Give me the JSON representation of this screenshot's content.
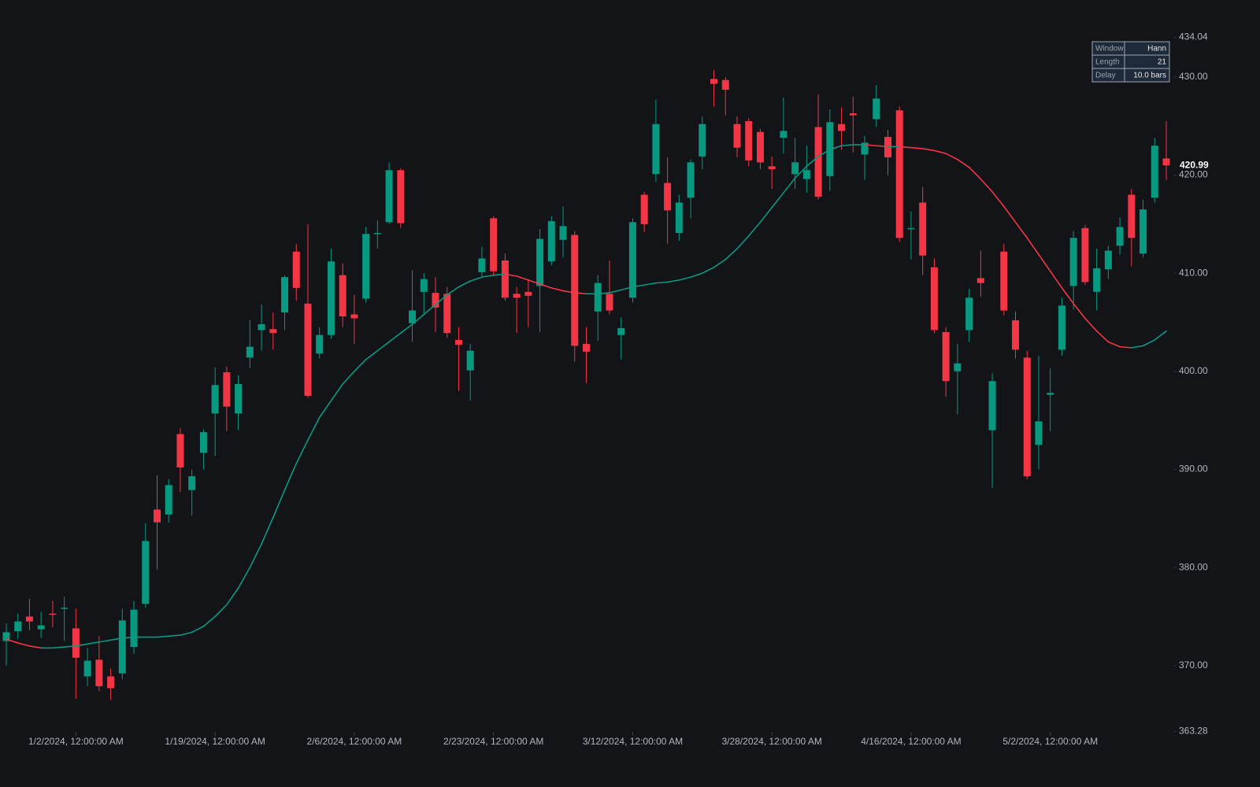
{
  "chart_data": {
    "type": "candlestick",
    "categories": [
      null,
      null,
      null,
      null,
      null,
      null,
      "1/2/2024, 12:00:00 AM",
      null,
      null,
      null,
      null,
      null,
      null,
      null,
      null,
      null,
      null,
      null,
      "1/19/2024, 12:00:00 AM",
      null,
      null,
      null,
      null,
      null,
      null,
      null,
      null,
      null,
      null,
      null,
      "2/6/2024, 12:00:00 AM",
      null,
      null,
      null,
      null,
      null,
      null,
      null,
      null,
      null,
      null,
      null,
      "2/23/2024, 12:00:00 AM",
      null,
      null,
      null,
      null,
      null,
      null,
      null,
      null,
      null,
      null,
      null,
      "3/12/2024, 12:00:00 AM",
      null,
      null,
      null,
      null,
      null,
      null,
      null,
      null,
      null,
      null,
      null,
      "3/28/2024, 12:00:00 AM",
      null,
      null,
      null,
      null,
      null,
      null,
      null,
      null,
      null,
      null,
      null,
      "4/16/2024, 12:00:00 AM",
      null,
      null,
      null,
      null,
      null,
      null,
      null,
      null,
      null,
      null,
      null,
      "5/2/2024, 12:00:00 AM",
      null,
      null,
      null,
      null,
      null,
      null,
      null,
      null,
      null,
      null
    ],
    "series": [
      {
        "up_color": "#089981",
        "down_color": "#f23645",
        "open": [
          372.5,
          373.5,
          375.0,
          373.7,
          375.3,
          375.8,
          373.8,
          368.9,
          370.6,
          368.9,
          369.2,
          371.9,
          376.3,
          385.9,
          385.4,
          393.6,
          387.9,
          391.7,
          395.7,
          399.9,
          395.7,
          401.4,
          404.2,
          404.3,
          406.0,
          412.2,
          406.9,
          401.8,
          403.7,
          409.8,
          405.8,
          407.4,
          414.0,
          415.2,
          420.5,
          404.9,
          408.1,
          408.0,
          407.9,
          403.2,
          400.1,
          410.1,
          415.6,
          411.3,
          407.9,
          408.1,
          408.7,
          411.2,
          413.4,
          413.9,
          402.8,
          406.1,
          407.9,
          403.7,
          407.5,
          418.0,
          420.1,
          419.2,
          414.1,
          417.7,
          421.9,
          429.8,
          429.7,
          425.2,
          425.5,
          424.4,
          420.9,
          423.8,
          420.1,
          419.6,
          424.9,
          419.9,
          425.2,
          426.3,
          422.1,
          425.7,
          423.9,
          426.6,
          414.5,
          417.2,
          410.6,
          404.0,
          400.0,
          404.2,
          409.5,
          394.0,
          412.2,
          405.2,
          401.4,
          392.5,
          397.6,
          402.2,
          408.7,
          414.6,
          408.1,
          410.4,
          412.8,
          418.0,
          412.0,
          417.7,
          421.7
        ],
        "high": [
          374.3,
          375.3,
          376.8,
          375.5,
          376.6,
          377.0,
          375.8,
          371.8,
          373.0,
          369.7,
          375.8,
          376.6,
          384.5,
          389.4,
          389.0,
          394.2,
          390.0,
          394.1,
          400.4,
          400.5,
          399.6,
          405.2,
          406.8,
          406.0,
          409.8,
          413.0,
          415.0,
          404.5,
          412.5,
          411.0,
          407.8,
          414.7,
          415.4,
          421.3,
          420.7,
          410.3,
          410.0,
          409.6,
          408.6,
          404.5,
          402.8,
          412.7,
          415.8,
          412.0,
          408.6,
          409.4,
          414.5,
          415.8,
          416.8,
          414.3,
          404.5,
          409.8,
          411.3,
          405.5,
          415.6,
          418.3,
          427.7,
          421.8,
          418.0,
          421.6,
          426.0,
          430.7,
          430.0,
          426.0,
          425.8,
          424.7,
          421.9,
          427.9,
          423.8,
          423.0,
          428.2,
          426.7,
          426.9,
          428.0,
          424.0,
          429.2,
          424.6,
          427.0,
          416.3,
          418.8,
          411.5,
          404.5,
          402.8,
          408.4,
          412.3,
          399.8,
          413.0,
          406.1,
          402.1,
          401.6,
          400.3,
          407.5,
          414.3,
          414.9,
          412.5,
          412.8,
          415.7,
          418.6,
          417.5,
          423.8,
          425.5
        ],
        "low": [
          370.0,
          372.7,
          373.6,
          372.8,
          373.9,
          372.5,
          366.6,
          367.9,
          367.4,
          366.5,
          368.6,
          371.2,
          375.9,
          379.8,
          384.6,
          387.7,
          385.3,
          390.0,
          391.4,
          393.9,
          394.0,
          400.3,
          402.1,
          402.2,
          404.2,
          407.2,
          397.3,
          401.3,
          403.3,
          404.5,
          402.8,
          407.0,
          412.5,
          415.0,
          414.6,
          403.0,
          405.8,
          404.0,
          403.4,
          398.0,
          397.0,
          409.6,
          409.8,
          407.2,
          403.9,
          404.5,
          404.0,
          410.8,
          411.6,
          401.0,
          398.8,
          403.1,
          405.8,
          401.2,
          407.0,
          414.2,
          419.3,
          413.0,
          413.3,
          415.6,
          420.6,
          427.0,
          426.1,
          421.8,
          420.9,
          420.6,
          418.6,
          422.2,
          418.6,
          418.2,
          417.5,
          418.4,
          422.6,
          422.3,
          419.5,
          424.9,
          420.0,
          413.2,
          411.4,
          409.8,
          403.9,
          397.4,
          395.6,
          403.0,
          407.6,
          388.1,
          405.7,
          401.3,
          389.0,
          390.0,
          393.9,
          401.6,
          406.3,
          408.8,
          406.2,
          409.4,
          411.9,
          410.7,
          411.6,
          417.2,
          419.5
        ],
        "close": [
          373.4,
          374.5,
          374.5,
          374.1,
          375.2,
          375.9,
          370.8,
          370.5,
          367.9,
          367.7,
          374.6,
          375.7,
          382.7,
          384.6,
          388.4,
          390.2,
          389.3,
          393.8,
          398.6,
          396.4,
          398.7,
          402.5,
          404.8,
          403.9,
          409.6,
          408.5,
          397.5,
          403.7,
          411.2,
          405.6,
          405.4,
          414.0,
          414.1,
          420.5,
          415.1,
          406.2,
          409.4,
          406.5,
          403.9,
          402.7,
          402.1,
          411.5,
          410.2,
          407.5,
          407.5,
          407.7,
          413.5,
          415.3,
          414.8,
          402.6,
          402.0,
          409.0,
          406.2,
          404.4,
          415.2,
          415.0,
          425.2,
          416.4,
          417.2,
          421.3,
          425.2,
          429.3,
          428.7,
          422.8,
          421.5,
          421.3,
          420.6,
          424.5,
          421.3,
          420.5,
          417.8,
          425.4,
          424.5,
          426.1,
          423.3,
          427.8,
          421.8,
          413.6,
          414.6,
          411.8,
          404.2,
          399.0,
          400.8,
          407.5,
          409.0,
          399.0,
          406.2,
          402.2,
          389.3,
          394.9,
          397.8,
          406.7,
          413.6,
          409.1,
          410.5,
          412.3,
          414.7,
          413.6,
          416.5,
          423.0,
          420.99
        ]
      },
      {
        "type": "line",
        "up_color": "#089981",
        "down_color": "#f23645",
        "values": [
          372.7,
          372.3,
          372.0,
          371.8,
          371.8,
          371.9,
          372.0,
          372.2,
          372.4,
          372.6,
          372.8,
          372.9,
          372.9,
          372.9,
          373.0,
          373.1,
          373.4,
          374.0,
          375.0,
          376.2,
          377.9,
          380.0,
          382.4,
          385.1,
          387.9,
          390.6,
          393.0,
          395.3,
          397.0,
          398.7,
          400.0,
          401.2,
          402.1,
          403.0,
          403.9,
          404.8,
          405.8,
          406.8,
          407.8,
          408.6,
          409.2,
          409.6,
          409.8,
          409.9,
          409.7,
          409.3,
          408.9,
          408.5,
          408.2,
          408.0,
          407.9,
          407.9,
          408.0,
          408.3,
          408.6,
          408.8,
          409.0,
          409.1,
          409.3,
          409.6,
          410.0,
          410.6,
          411.4,
          412.5,
          413.8,
          415.2,
          416.7,
          418.2,
          419.7,
          420.9,
          421.9,
          422.6,
          423.0,
          423.1,
          423.1,
          423.0,
          422.9,
          422.9,
          422.8,
          422.7,
          422.5,
          422.2,
          421.6,
          420.8,
          419.6,
          418.3,
          416.8,
          415.2,
          413.6,
          411.9,
          410.2,
          408.5,
          406.9,
          405.4,
          404.1,
          403.0,
          402.5,
          402.4,
          402.6,
          403.2,
          404.1
        ]
      }
    ],
    "ylim": [
      363.28,
      434.04
    ],
    "yticks": [
      363.28,
      {
        "value": 370,
        "label": "370.00"
      },
      {
        "value": 380,
        "label": "380.00"
      },
      {
        "value": 390,
        "label": "390.00"
      },
      {
        "value": 400,
        "label": "400.00"
      },
      {
        "value": 410,
        "label": "410.00"
      },
      {
        "value": 420,
        "label": "420.00"
      },
      {
        "value": 430,
        "label": "430.00"
      },
      434.04
    ],
    "info_table": {
      "rows": [
        [
          "Window",
          "Hann"
        ],
        [
          "Length",
          21
        ],
        [
          "Delay",
          "10.0 bars"
        ]
      ]
    }
  }
}
